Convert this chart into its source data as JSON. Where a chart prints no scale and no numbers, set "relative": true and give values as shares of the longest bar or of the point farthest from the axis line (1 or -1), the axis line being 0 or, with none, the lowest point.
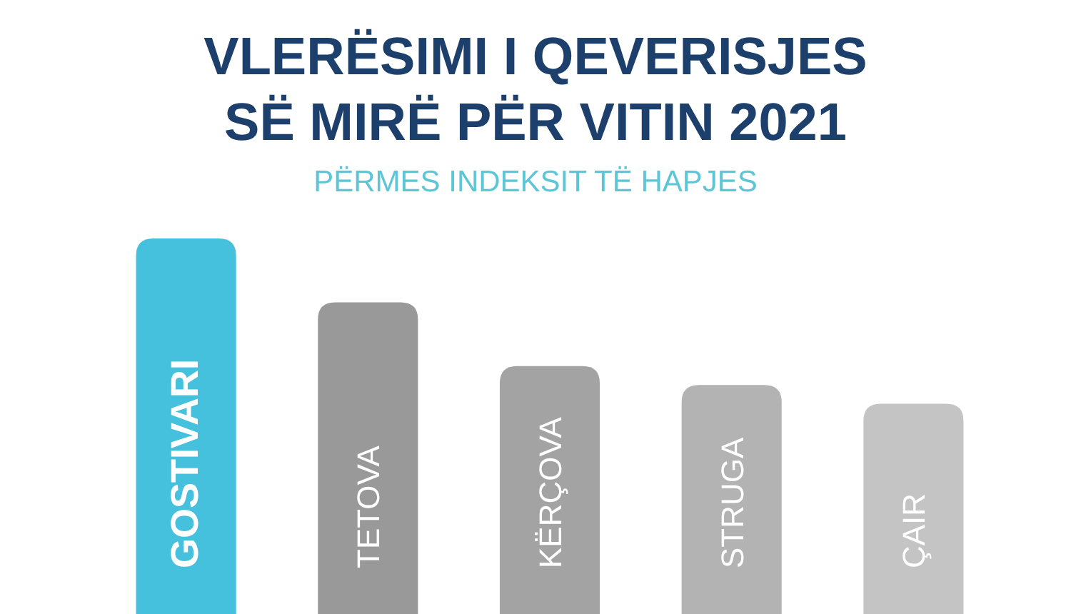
{
  "chart_data": {
    "type": "bar",
    "relative": true,
    "title": "VLERËSIMI I QEVERISJES SË MIRË PËR VITIN 2021",
    "subtitle": "PËRMES INDEKSIT TË HAPJES",
    "categories": [
      "GOSTIVARI",
      "TETOVA",
      "KËRÇOVA",
      "STRUGA",
      "ÇAIR"
    ],
    "values": [
      1,
      0.83,
      0.66,
      0.61,
      0.56
    ],
    "colors": [
      "#45c0dd",
      "#999999",
      "#a3a3a3",
      "#b3b3b3",
      "#c4c4c4"
    ]
  }
}
